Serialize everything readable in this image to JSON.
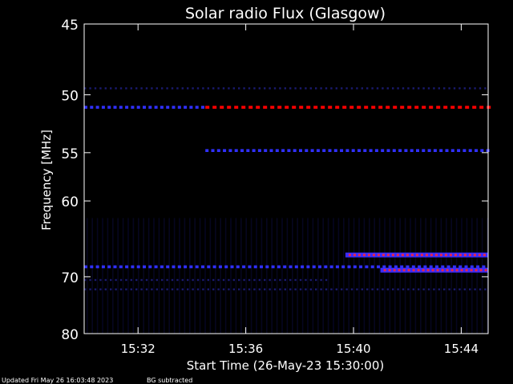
{
  "chart_data": {
    "type": "heatmap",
    "title": "Solar radio Flux (Glasgow)",
    "xlabel": "Start Time (26-May-23 15:30:00)",
    "ylabel": "Frequency [MHz]",
    "x_unit": "time (HH:MM, 26-May-23)",
    "xlim": [
      "15:30",
      "15:45"
    ],
    "ylim_mhz": [
      45,
      80
    ],
    "y_scale": "decreasing downward, compressed spacing at higher frequencies",
    "yticks": [
      45,
      50,
      55,
      60,
      70,
      80
    ],
    "xticks": [
      "15:32",
      "15:36",
      "15:40",
      "15:44"
    ],
    "grid": false,
    "background_subtracted": true,
    "colors": {
      "background": "#000000",
      "low": "#1a1a6e",
      "mid": "#3030ff",
      "high": "#e8254b",
      "peak": "#ff0000"
    },
    "features": [
      {
        "kind": "band",
        "freq_mhz": 49.5,
        "start": "15:30",
        "end": "15:45",
        "intensity": "low"
      },
      {
        "kind": "band",
        "freq_mhz": 51.0,
        "start": "15:30",
        "end": "15:34.5",
        "intensity": "mid"
      },
      {
        "kind": "band",
        "freq_mhz": 51.0,
        "start": "15:34.5",
        "end": "15:45",
        "intensity": "peak"
      },
      {
        "kind": "band",
        "freq_mhz": 54.8,
        "start": "15:34.5",
        "end": "15:45",
        "intensity": "mid"
      },
      {
        "kind": "band",
        "freq_mhz": 66.8,
        "start": "15:39.7",
        "end": "15:45",
        "intensity": "high"
      },
      {
        "kind": "band",
        "freq_mhz": 68.5,
        "start": "15:30",
        "end": "15:45",
        "intensity": "mid"
      },
      {
        "kind": "band",
        "freq_mhz": 69.0,
        "start": "15:41",
        "end": "15:45",
        "intensity": "high"
      },
      {
        "kind": "band",
        "freq_mhz": 70.5,
        "start": "15:30",
        "end": "15:39",
        "intensity": "low"
      },
      {
        "kind": "band",
        "freq_mhz": 72.0,
        "start": "15:30",
        "end": "15:45",
        "intensity": "low"
      }
    ]
  },
  "footer": {
    "updated": "Updated Fri May 26 16:03:48 2023",
    "note": "BG subtracted"
  }
}
